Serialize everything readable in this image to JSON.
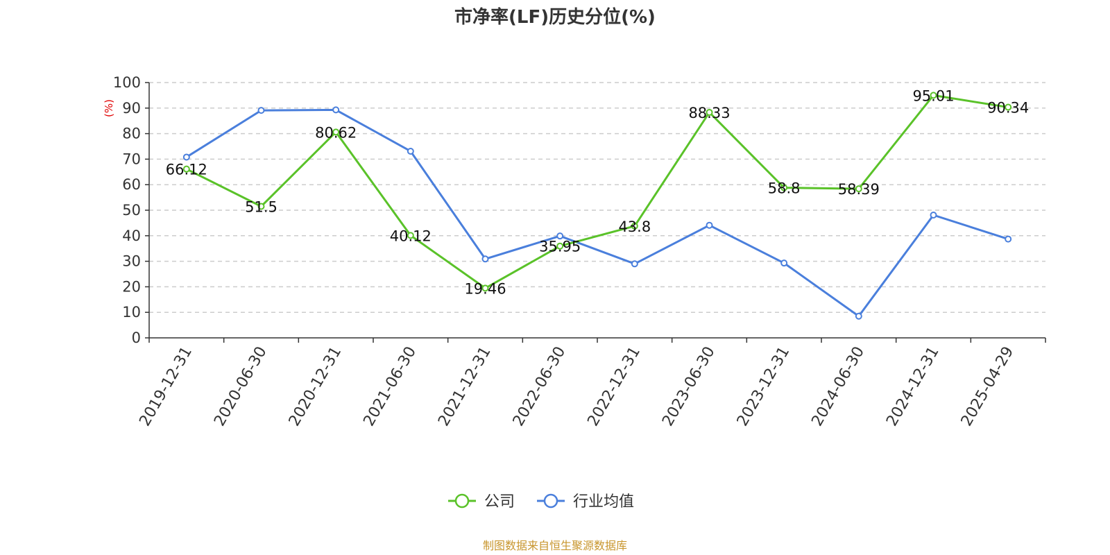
{
  "chart_data": {
    "type": "line",
    "title": "市净率(LF)历史分位(%)",
    "ylabel": "(%)",
    "ylim": [
      0,
      100
    ],
    "yticks": [
      0,
      10,
      20,
      30,
      40,
      50,
      60,
      70,
      80,
      90,
      100
    ],
    "categories": [
      "2019-12-31",
      "2020-06-30",
      "2020-12-31",
      "2021-06-30",
      "2021-12-31",
      "2022-06-30",
      "2022-12-31",
      "2023-06-30",
      "2023-12-31",
      "2024-06-30",
      "2024-12-31",
      "2025-04-29"
    ],
    "grid": true,
    "legend_position": "bottom-center",
    "series": [
      {
        "name": "公司",
        "color": "#5ac229",
        "values": [
          66.12,
          51.5,
          80.62,
          40.12,
          19.46,
          35.95,
          43.8,
          88.33,
          58.8,
          58.39,
          95.01,
          90.34
        ],
        "labels": [
          "66.12",
          "51.5",
          "80.62",
          "40.12",
          "19.46",
          "35.95",
          "43.8",
          "88.33",
          "58.8",
          "58.39",
          "95.01",
          "90.34"
        ]
      },
      {
        "name": "行业均值",
        "color": "#4a7fdc",
        "values": [
          70.8,
          89.1,
          89.3,
          73.1,
          30.9,
          39.9,
          29.0,
          44.1,
          29.3,
          8.5,
          48.1,
          38.7
        ]
      }
    ],
    "unit_color": "#e00000"
  },
  "source_text": "制图数据来自恒生聚源数据库",
  "source_color": "#c8962e"
}
